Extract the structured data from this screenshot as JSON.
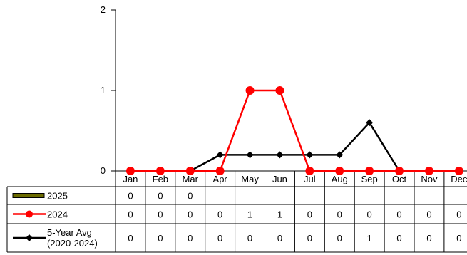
{
  "chart_data": {
    "type": "line",
    "categories": [
      "Jan",
      "Feb",
      "Mar",
      "Apr",
      "May",
      "Jun",
      "Jul",
      "Aug",
      "Sep",
      "Oct",
      "Nov",
      "Dec"
    ],
    "ylim": [
      0,
      2
    ],
    "yticks": [
      "0",
      "1",
      "2"
    ],
    "grid": false,
    "legend": "data-table-left",
    "series": [
      {
        "name": "2025",
        "style": "bar",
        "color": "#6b6b00",
        "plot_values": [
          null,
          null,
          null,
          null,
          null,
          null,
          null,
          null,
          null,
          null,
          null,
          null
        ],
        "table_values": [
          "0",
          "0",
          "0",
          "",
          "",
          "",
          "",
          "",
          "",
          "",
          "",
          ""
        ]
      },
      {
        "name": "2024",
        "style": "line-circle",
        "color": "#ff0000",
        "plot_values": [
          0,
          0,
          0,
          0,
          1,
          1,
          0,
          0,
          0,
          0,
          0,
          0
        ],
        "table_values": [
          "0",
          "0",
          "0",
          "0",
          "1",
          "1",
          "0",
          "0",
          "0",
          "0",
          "0",
          "0"
        ]
      },
      {
        "name": "5-Year Avg",
        "name_line2": "(2020-2024)",
        "style": "line-diamond",
        "color": "#000000",
        "plot_values": [
          0,
          0,
          0,
          0.2,
          0.2,
          0.2,
          0.2,
          0.2,
          0.6,
          0,
          0,
          0
        ],
        "table_values": [
          "0",
          "0",
          "0",
          "0",
          "0",
          "0",
          "0",
          "0",
          "1",
          "0",
          "0",
          "0"
        ]
      }
    ]
  }
}
